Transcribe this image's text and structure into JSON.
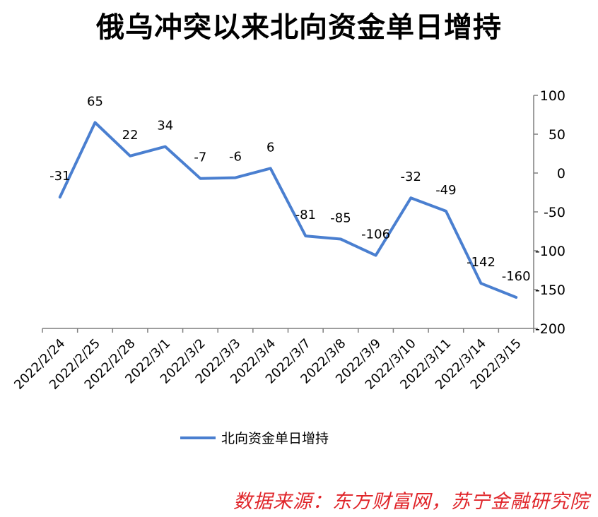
{
  "title": "俄乌冲突以来北向资金单日增持",
  "source": "数据来源：东方财富网，苏宁金融研究院",
  "colors": {
    "line": "#4a7fd0",
    "source": "#e0252a",
    "axis": "#7f7f7f"
  },
  "chart_data": {
    "type": "line",
    "title": "俄乌冲突以来北向资金单日增持",
    "categories": [
      "2022/2/24",
      "2022/2/25",
      "2022/2/28",
      "2022/3/1",
      "2022/3/2",
      "2022/3/3",
      "2022/3/4",
      "2022/3/7",
      "2022/3/8",
      "2022/3/9",
      "2022/3/10",
      "2022/3/11",
      "2022/3/14",
      "2022/3/15"
    ],
    "series": [
      {
        "name": "北向资金单日增持",
        "values": [
          -31,
          65,
          22,
          34,
          -7,
          -6,
          6,
          -81,
          -85,
          -106,
          -32,
          -49,
          -142,
          -160
        ]
      }
    ],
    "y_axis_position": "right",
    "ylim": [
      -200,
      100
    ],
    "yticks": [
      100,
      50,
      0,
      -50,
      -100,
      -150,
      -200
    ],
    "grid": false,
    "legend": "bottom",
    "data_labels": true
  }
}
